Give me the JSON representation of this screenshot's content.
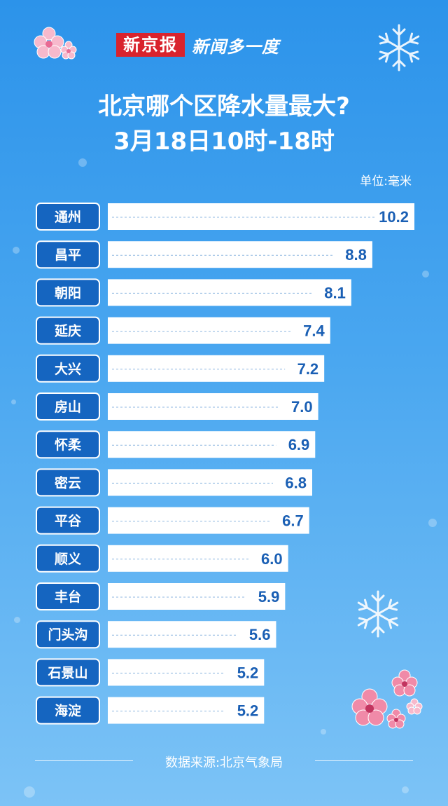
{
  "header": {
    "brand": "新京报",
    "brand_sub": "新闻多一度",
    "title_line1": "北京哪个区降水量最大?",
    "title_line2": "3月18日10时-18时",
    "unit": "单位:毫米"
  },
  "chart_data": {
    "type": "bar",
    "orientation": "horizontal",
    "categories": [
      "通州",
      "昌平",
      "朝阳",
      "延庆",
      "大兴",
      "房山",
      "怀柔",
      "密云",
      "平谷",
      "顺义",
      "丰台",
      "门头沟",
      "石景山",
      "海淀"
    ],
    "values": [
      10.2,
      8.8,
      8.1,
      7.4,
      7.2,
      7.0,
      6.9,
      6.8,
      6.7,
      6.0,
      5.9,
      5.6,
      5.2,
      5.2
    ],
    "value_labels": [
      "10.2",
      "8.8",
      "8.1",
      "7.4",
      "7.2",
      "7.0",
      "6.9",
      "6.8",
      "6.7",
      "6.0",
      "5.9",
      "5.6",
      "5.2",
      "5.2"
    ],
    "bar_color": "#ffffff",
    "label_color": "#1a5fb4",
    "category_box_color": "#1565c0",
    "title": "北京哪个区降水量最大?",
    "subtitle": "3月18日10时-18时",
    "xlabel": "",
    "ylabel": "",
    "unit": "毫米",
    "xlim": [
      0,
      10.2
    ]
  },
  "footer": {
    "source": "数据来源:北京气象局"
  },
  "colors": {
    "background_top": "#2c93ea",
    "background_bottom": "#7cc3f6",
    "brand_red": "#d9232d"
  },
  "decorations": [
    "snowflake-icon",
    "cherry-blossom-icon"
  ]
}
